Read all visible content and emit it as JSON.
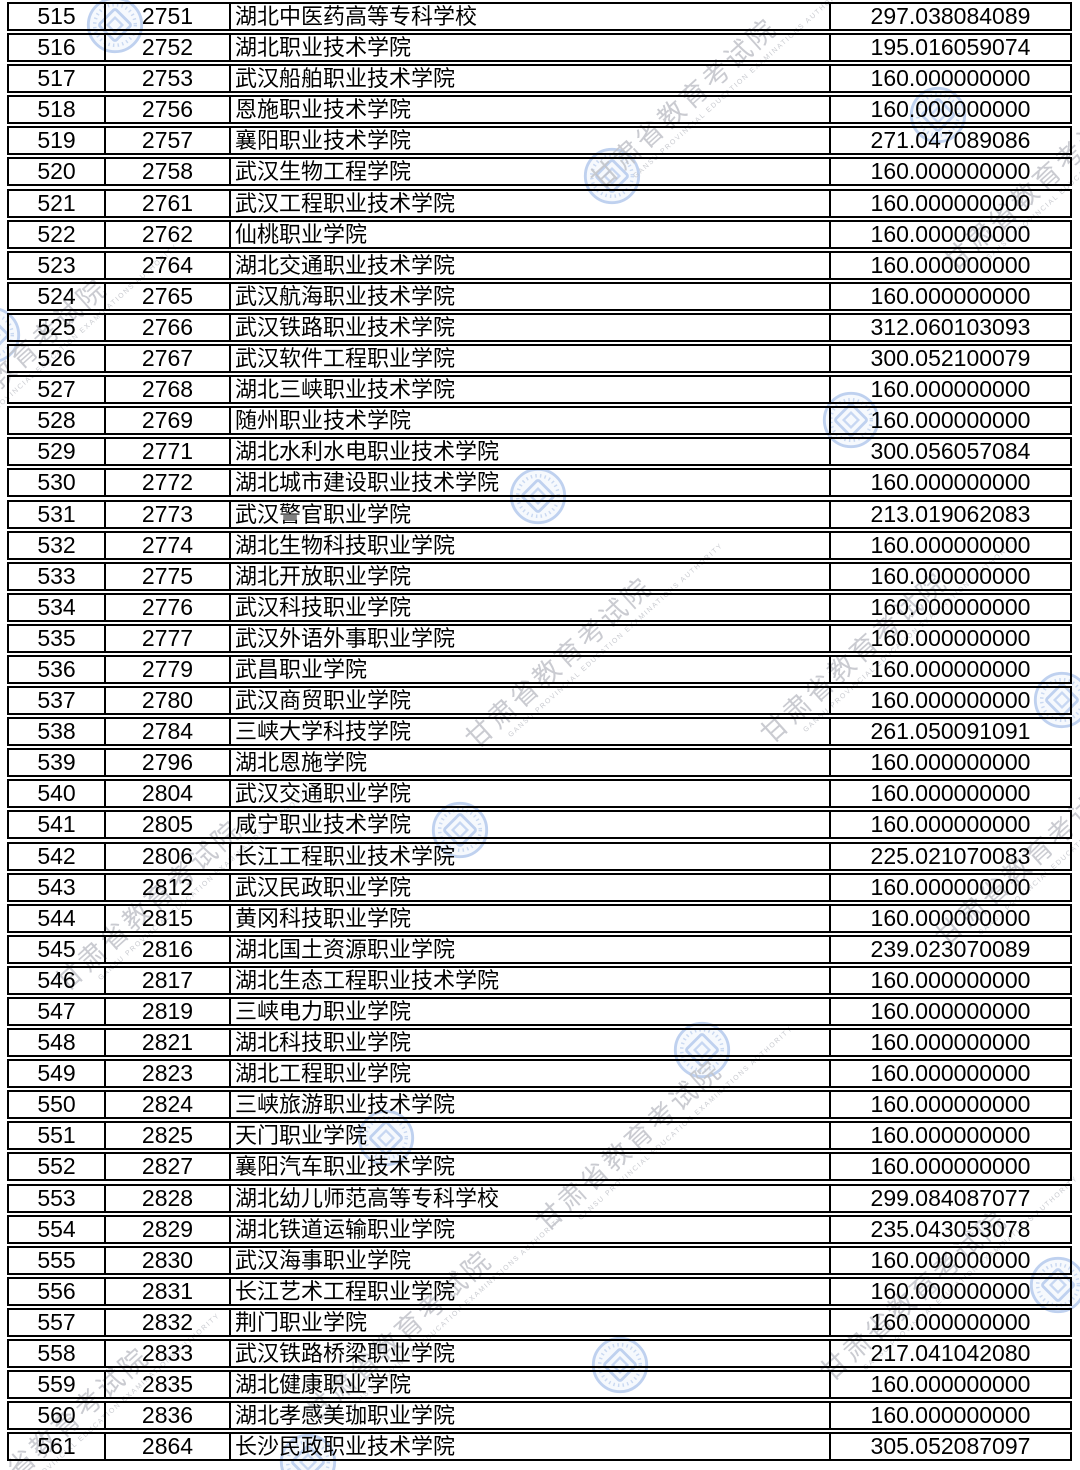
{
  "document": {
    "rows": [
      {
        "seq": "515",
        "code": "2751",
        "name": "湖北中医药高等专科学校",
        "score": "297.038084089"
      },
      {
        "seq": "516",
        "code": "2752",
        "name": "湖北职业技术学院",
        "score": "195.016059074"
      },
      {
        "seq": "517",
        "code": "2753",
        "name": "武汉船舶职业技术学院",
        "score": "160.000000000"
      },
      {
        "seq": "518",
        "code": "2756",
        "name": "恩施职业技术学院",
        "score": "160.000000000"
      },
      {
        "seq": "519",
        "code": "2757",
        "name": "襄阳职业技术学院",
        "score": "271.047089086"
      },
      {
        "seq": "520",
        "code": "2758",
        "name": "武汉生物工程学院",
        "score": "160.000000000"
      },
      {
        "seq": "521",
        "code": "2761",
        "name": "武汉工程职业技术学院",
        "score": "160.000000000"
      },
      {
        "seq": "522",
        "code": "2762",
        "name": "仙桃职业学院",
        "score": "160.000000000"
      },
      {
        "seq": "523",
        "code": "2764",
        "name": "湖北交通职业技术学院",
        "score": "160.000000000"
      },
      {
        "seq": "524",
        "code": "2765",
        "name": "武汉航海职业技术学院",
        "score": "160.000000000"
      },
      {
        "seq": "525",
        "code": "2766",
        "name": "武汉铁路职业技术学院",
        "score": "312.060103093"
      },
      {
        "seq": "526",
        "code": "2767",
        "name": "武汉软件工程职业学院",
        "score": "300.052100079"
      },
      {
        "seq": "527",
        "code": "2768",
        "name": "湖北三峡职业技术学院",
        "score": "160.000000000"
      },
      {
        "seq": "528",
        "code": "2769",
        "name": "随州职业技术学院",
        "score": "160.000000000"
      },
      {
        "seq": "529",
        "code": "2771",
        "name": "湖北水利水电职业技术学院",
        "score": "300.056057084"
      },
      {
        "seq": "530",
        "code": "2772",
        "name": "湖北城市建设职业技术学院",
        "score": "160.000000000"
      },
      {
        "seq": "531",
        "code": "2773",
        "name": "武汉警官职业学院",
        "score": "213.019062083"
      },
      {
        "seq": "532",
        "code": "2774",
        "name": "湖北生物科技职业学院",
        "score": "160.000000000"
      },
      {
        "seq": "533",
        "code": "2775",
        "name": "湖北开放职业学院",
        "score": "160.000000000"
      },
      {
        "seq": "534",
        "code": "2776",
        "name": "武汉科技职业学院",
        "score": "160.000000000"
      },
      {
        "seq": "535",
        "code": "2777",
        "name": "武汉外语外事职业学院",
        "score": "160.000000000"
      },
      {
        "seq": "536",
        "code": "2779",
        "name": "武昌职业学院",
        "score": "160.000000000"
      },
      {
        "seq": "537",
        "code": "2780",
        "name": "武汉商贸职业学院",
        "score": "160.000000000"
      },
      {
        "seq": "538",
        "code": "2784",
        "name": "三峡大学科技学院",
        "score": "261.050091091"
      },
      {
        "seq": "539",
        "code": "2796",
        "name": "湖北恩施学院",
        "score": "160.000000000"
      },
      {
        "seq": "540",
        "code": "2804",
        "name": "武汉交通职业学院",
        "score": "160.000000000"
      },
      {
        "seq": "541",
        "code": "2805",
        "name": "咸宁职业技术学院",
        "score": "160.000000000"
      },
      {
        "seq": "542",
        "code": "2806",
        "name": "长江工程职业技术学院",
        "score": "225.021070083"
      },
      {
        "seq": "543",
        "code": "2812",
        "name": "武汉民政职业学院",
        "score": "160.000000000"
      },
      {
        "seq": "544",
        "code": "2815",
        "name": "黄冈科技职业学院",
        "score": "160.000000000"
      },
      {
        "seq": "545",
        "code": "2816",
        "name": "湖北国土资源职业学院",
        "score": "239.023070089"
      },
      {
        "seq": "546",
        "code": "2817",
        "name": "湖北生态工程职业技术学院",
        "score": "160.000000000"
      },
      {
        "seq": "547",
        "code": "2819",
        "name": "三峡电力职业学院",
        "score": "160.000000000"
      },
      {
        "seq": "548",
        "code": "2821",
        "name": "湖北科技职业学院",
        "score": "160.000000000"
      },
      {
        "seq": "549",
        "code": "2823",
        "name": "湖北工程职业学院",
        "score": "160.000000000"
      },
      {
        "seq": "550",
        "code": "2824",
        "name": "三峡旅游职业技术学院",
        "score": "160.000000000"
      },
      {
        "seq": "551",
        "code": "2825",
        "name": "天门职业学院",
        "score": "160.000000000"
      },
      {
        "seq": "552",
        "code": "2827",
        "name": "襄阳汽车职业技术学院",
        "score": "160.000000000"
      },
      {
        "seq": "553",
        "code": "2828",
        "name": "湖北幼儿师范高等专科学校",
        "score": "299.084087077"
      },
      {
        "seq": "554",
        "code": "2829",
        "name": "湖北铁道运输职业学院",
        "score": "235.043053078"
      },
      {
        "seq": "555",
        "code": "2830",
        "name": "武汉海事职业学院",
        "score": "160.000000000"
      },
      {
        "seq": "556",
        "code": "2831",
        "name": "长江艺术工程职业学院",
        "score": "160.000000000"
      },
      {
        "seq": "557",
        "code": "2832",
        "name": "荆门职业学院",
        "score": "160.000000000"
      },
      {
        "seq": "558",
        "code": "2833",
        "name": "武汉铁路桥梁职业学院",
        "score": "217.041042080"
      },
      {
        "seq": "559",
        "code": "2835",
        "name": "湖北健康职业学院",
        "score": "160.000000000"
      },
      {
        "seq": "560",
        "code": "2836",
        "name": "湖北孝感美珈职业学院",
        "score": "160.000000000"
      },
      {
        "seq": "561",
        "code": "2864",
        "name": "长沙民政职业技术学院",
        "score": "305.052087097"
      }
    ]
  },
  "watermark": {
    "cn": "甘肃省教育考试院",
    "en": "GANSU PROVINCIAL EDUCATION EXAMINATIONS AUTHORITY",
    "text_color": "#c1c3c9",
    "seal_color": "#b9cdee"
  }
}
